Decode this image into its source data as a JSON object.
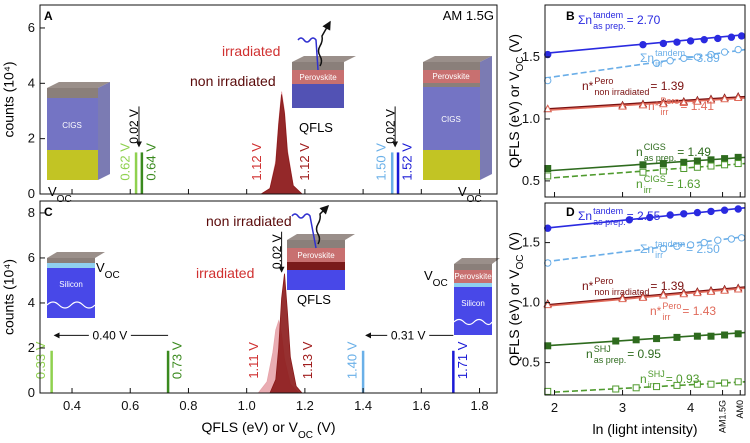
{
  "chart_data": [
    {
      "type": "area",
      "panel": "A",
      "note": "AM 1.5G",
      "ylabel": "counts (10⁴)",
      "xlim": [
        0.29,
        1.86
      ],
      "xticks": [
        0.4,
        0.6,
        0.8,
        {
          "value": 1,
          "label": "1.0"
        },
        1.2,
        1.4,
        1.6,
        1.8
      ],
      "xtick_labels": false,
      "ylim": [
        0,
        6.83
      ],
      "yticks": [
        0,
        2,
        4,
        6
      ],
      "series": [
        {
          "name": "irradiated",
          "color": "#e7a3aa",
          "x": [
            1.05,
            1.08,
            1.1,
            1.11,
            1.12,
            1.13,
            1.14,
            1.16,
            1.19
          ],
          "values": [
            0,
            0.2,
            1.2,
            2.6,
            3.7,
            3.0,
            1.6,
            0.3,
            0
          ]
        },
        {
          "name": "non irradiated",
          "color": "#8b1a1a",
          "x": [
            1.05,
            1.08,
            1.1,
            1.11,
            1.12,
            1.13,
            1.14,
            1.16,
            1.19
          ],
          "values": [
            0,
            0.2,
            1.1,
            2.5,
            3.6,
            2.9,
            1.5,
            0.3,
            0
          ]
        }
      ],
      "markers": [
        {
          "value": 0.62,
          "label": "0.62 V",
          "color": "#8fd14f",
          "line": true
        },
        {
          "value": 0.64,
          "label": "0.64 V",
          "color": "#3a8a1e",
          "line": true
        },
        {
          "value": 1.12,
          "label": "1.12 V",
          "color": "#d03030",
          "line": false
        },
        {
          "value": 1.12,
          "label": "1.12 V",
          "color": "#a01c1c",
          "line": false
        },
        {
          "value": 1.5,
          "label": "1.50 V",
          "color": "#6ab0e8",
          "line": true
        },
        {
          "value": 1.52,
          "label": "1.52 V",
          "color": "#1a1ad6",
          "line": true
        }
      ],
      "deltas": [
        {
          "x1": 0.62,
          "x2": 0.64,
          "label": "0.02 V"
        },
        {
          "x1": 1.5,
          "x2": 1.52,
          "label": "0.02 V"
        }
      ],
      "cell_labels": [
        "CIGS",
        "Perovskite",
        "Perovskite",
        "CIGS"
      ],
      "qfls": "QFLS",
      "voc": [
        "V",
        "OC"
      ]
    },
    {
      "type": "scatter",
      "panel": "B",
      "ylabel": [
        "QFLS (eV) or V",
        "OC",
        " (V)"
      ],
      "xlim": [
        1.86,
        4.8
      ],
      "xticks": [
        2,
        3,
        4,
        {
          "value": 4.47,
          "label": "AM1.5G"
        },
        {
          "value": 4.73,
          "label": "AM0"
        }
      ],
      "xtick_labels": false,
      "ylim": [
        0.37,
        1.92
      ],
      "yticks": [
        0.5,
        {
          "value": 1,
          "label": "1.0"
        },
        1.5
      ],
      "series": [
        {
          "label": {
            "base": "Σn",
            "sup": "tandem",
            "sub": "as prep.",
            "rest": " = 2.70"
          },
          "color": "#2a2ae0",
          "marker": "circle",
          "filled": true,
          "dashed": false,
          "x": [
            1.9,
            3.3,
            3.6,
            3.8,
            4.0,
            4.2,
            4.4,
            4.6,
            4.75
          ],
          "values": [
            1.52,
            1.6,
            1.61,
            1.62,
            1.63,
            1.64,
            1.65,
            1.66,
            1.67
          ],
          "fit": [
            1.53,
            1.68
          ]
        },
        {
          "label": {
            "base": "Σn",
            "sup": "tandem",
            "sub": "irr",
            "rest": " = 3.89"
          },
          "color": "#6aaee8",
          "marker": "circle",
          "filled": false,
          "dashed": true,
          "x": [
            1.9,
            3.5,
            3.7,
            3.9,
            4.1,
            4.3,
            4.5,
            4.7
          ],
          "values": [
            1.31,
            1.45,
            1.47,
            1.49,
            1.5,
            1.52,
            1.54,
            1.56
          ],
          "fit": [
            1.33,
            1.56
          ]
        },
        {
          "label": {
            "base": "n*",
            "sup": "Pero",
            "sub": "non irradiated",
            "rest": " = 1.39"
          },
          "color": "#7a1010",
          "marker": "triangle",
          "filled": true,
          "dashed": false,
          "x": [
            1.9,
            3.0,
            3.3,
            3.6,
            3.9,
            4.1,
            4.3,
            4.5,
            4.7
          ],
          "values": [
            1.08,
            1.11,
            1.12,
            1.13,
            1.14,
            1.15,
            1.16,
            1.17,
            1.18
          ],
          "fit": [
            1.08,
            1.18
          ]
        },
        {
          "label": {
            "base": "n*",
            "sup": "Pero",
            "sub": "irr",
            "rest": " = 1.41"
          },
          "color": "#e06a5a",
          "marker": "triangle",
          "filled": false,
          "dashed": false,
          "x": [
            1.9,
            3.0,
            3.3,
            3.6,
            3.9,
            4.1,
            4.3,
            4.5,
            4.7
          ],
          "values": [
            1.08,
            1.1,
            1.11,
            1.12,
            1.13,
            1.14,
            1.15,
            1.16,
            1.17
          ],
          "fit": [
            1.07,
            1.17
          ]
        },
        {
          "label": {
            "base": "n",
            "sup": "CIGS",
            "sub": "as prep.",
            "rest": " = 1.49"
          },
          "color": "#2e6b1e",
          "marker": "square",
          "filled": true,
          "dashed": false,
          "x": [
            1.9,
            3.3,
            3.6,
            3.9,
            4.1,
            4.3,
            4.5,
            4.7
          ],
          "values": [
            0.6,
            0.63,
            0.64,
            0.65,
            0.66,
            0.67,
            0.68,
            0.69
          ],
          "fit": [
            0.58,
            0.69
          ]
        },
        {
          "label": {
            "base": "n",
            "sup": "CIGS",
            "sub": "irr",
            "rest": " = 1.63"
          },
          "color": "#4f9a2e",
          "marker": "square",
          "filled": false,
          "dashed": true,
          "x": [
            1.9,
            3.3,
            3.6,
            3.9,
            4.1,
            4.3,
            4.5,
            4.7
          ],
          "values": [
            0.54,
            0.57,
            0.58,
            0.6,
            0.61,
            0.62,
            0.63,
            0.64
          ],
          "fit": [
            0.52,
            0.64
          ]
        }
      ]
    },
    {
      "type": "area",
      "panel": "C",
      "ylabel": "counts (10⁴)",
      "xlabel": [
        "QFLS (eV) or V",
        "OC",
        " (V)"
      ],
      "xlim": [
        0.29,
        1.86
      ],
      "xticks": [
        0.4,
        0.6,
        0.8,
        {
          "value": 1,
          "label": "1.0"
        },
        1.2,
        1.4,
        1.6,
        1.8
      ],
      "ylim": [
        0,
        8.53
      ],
      "yticks": [
        0,
        2,
        4,
        6,
        8
      ],
      "series": [
        {
          "name": "irradiated",
          "color": "#e7a3aa",
          "x": [
            1.04,
            1.07,
            1.09,
            1.1,
            1.11,
            1.12,
            1.13,
            1.15,
            1.18
          ],
          "values": [
            0,
            0.5,
            1.8,
            2.8,
            3.2,
            2.6,
            1.5,
            0.4,
            0
          ]
        },
        {
          "name": "non irradiated",
          "color": "#8b1a1a",
          "x": [
            1.08,
            1.1,
            1.11,
            1.12,
            1.13,
            1.14,
            1.15,
            1.17,
            1.19
          ],
          "values": [
            0,
            0.6,
            2.0,
            4.2,
            5.3,
            3.6,
            1.6,
            0.3,
            0
          ]
        }
      ],
      "markers": [
        {
          "value": 0.33,
          "label": "0.33 V",
          "color": "#8fd14f",
          "line": true
        },
        {
          "value": 0.73,
          "label": "0.73 V",
          "color": "#3a8a1e",
          "line": true
        },
        {
          "value": 1.11,
          "label": "1.11 V",
          "color": "#d03030",
          "line": false
        },
        {
          "value": 1.13,
          "label": "1.13 V",
          "color": "#a01c1c",
          "line": false
        },
        {
          "value": 1.4,
          "label": "1.40 V",
          "color": "#6ab0e8",
          "line": true
        },
        {
          "value": 1.71,
          "label": "1.71 V",
          "color": "#1a1ad6",
          "line": true
        }
      ],
      "deltas": [
        {
          "x1": 0.33,
          "x2": 0.73,
          "label": "0.40 V"
        },
        {
          "x1": 1.11,
          "x2": 1.13,
          "label": "0.02 V"
        },
        {
          "x1": 1.4,
          "x2": 1.71,
          "label": "0.31 V"
        }
      ],
      "cell_labels": [
        "Silicon",
        "Perovskite",
        "Perovskite",
        "Silicon"
      ],
      "qfls": "QFLS",
      "voc": [
        "V",
        "OC"
      ]
    },
    {
      "type": "scatter",
      "panel": "D",
      "ylabel": [
        "QFLS (eV) or V",
        "OC",
        " (V)"
      ],
      "xlabel": "ln (light intensity)",
      "xlim": [
        1.86,
        4.8
      ],
      "xticks": [
        2,
        3,
        4,
        {
          "value": 4.47,
          "label": "AM1.5G"
        },
        {
          "value": 4.73,
          "label": "AM0"
        }
      ],
      "ylim": [
        0.23,
        1.83
      ],
      "yticks": [
        0.5,
        {
          "value": 1,
          "label": "1.0"
        },
        1.5
      ],
      "series": [
        {
          "label": {
            "base": "Σn",
            "sup": "tandem",
            "sub": "as prep.",
            "rest": " = 2.55"
          },
          "color": "#2a2ae0",
          "marker": "circle",
          "filled": true,
          "dashed": false,
          "x": [
            1.9,
            3.1,
            3.4,
            3.7,
            3.9,
            4.1,
            4.3,
            4.5,
            4.7
          ],
          "values": [
            1.62,
            1.69,
            1.71,
            1.73,
            1.74,
            1.75,
            1.76,
            1.77,
            1.78
          ],
          "fit": [
            1.62,
            1.79
          ]
        },
        {
          "label": {
            "base": "Σn",
            "sup": "tandem",
            "sub": "irr",
            "rest": " = 2.50"
          },
          "color": "#6aaee8",
          "marker": "circle",
          "filled": false,
          "dashed": true,
          "x": [
            1.9,
            3.6,
            3.8,
            4.0,
            4.2,
            4.4,
            4.6,
            4.75
          ],
          "values": [
            1.33,
            1.45,
            1.47,
            1.48,
            1.5,
            1.52,
            1.53,
            1.54
          ],
          "fit": [
            1.34,
            1.55
          ]
        },
        {
          "label": {
            "base": "n*",
            "sup": "Pero",
            "sub": "non irradiated",
            "rest": " = 1.39"
          },
          "color": "#7a1010",
          "marker": "triangle",
          "filled": true,
          "dashed": false,
          "x": [
            1.9,
            3.0,
            3.3,
            3.6,
            3.9,
            4.1,
            4.3,
            4.5,
            4.7
          ],
          "values": [
            0.99,
            1.04,
            1.05,
            1.07,
            1.08,
            1.09,
            1.1,
            1.11,
            1.12
          ],
          "fit": [
            0.98,
            1.13
          ]
        },
        {
          "label": {
            "base": "n*",
            "sup": "Pero",
            "sub": "irr",
            "rest": " = 1.43"
          },
          "color": "#e06a5a",
          "marker": "triangle",
          "filled": false,
          "dashed": false,
          "x": [
            1.9,
            3.0,
            3.3,
            3.6,
            3.9,
            4.1,
            4.3,
            4.5,
            4.7
          ],
          "values": [
            0.98,
            1.03,
            1.04,
            1.06,
            1.07,
            1.08,
            1.09,
            1.1,
            1.11
          ],
          "fit": [
            0.97,
            1.12
          ]
        },
        {
          "label": {
            "base": "n",
            "sup": "SHJ",
            "sub": "as prep.",
            "rest": " = 0.95"
          },
          "color": "#2e6b1e",
          "marker": "square",
          "filled": true,
          "dashed": false,
          "x": [
            1.9,
            2.9,
            3.2,
            3.5,
            3.8,
            4.1,
            4.3,
            4.5,
            4.7
          ],
          "values": [
            0.64,
            0.68,
            0.69,
            0.7,
            0.71,
            0.72,
            0.72,
            0.73,
            0.74
          ],
          "fit": [
            0.64,
            0.75
          ]
        },
        {
          "label": {
            "base": "n",
            "sup": "SHJ",
            "sub": "irr",
            "rest": " = 0.93"
          },
          "color": "#4f9a2e",
          "marker": "square",
          "filled": false,
          "dashed": true,
          "x": [
            1.9,
            2.9,
            3.2,
            3.5,
            3.8,
            4.1,
            4.3,
            4.5,
            4.7
          ],
          "values": [
            0.26,
            0.28,
            0.29,
            0.3,
            0.31,
            0.32,
            0.32,
            0.33,
            0.34
          ],
          "fit": [
            0.25,
            0.34
          ]
        }
      ]
    }
  ]
}
